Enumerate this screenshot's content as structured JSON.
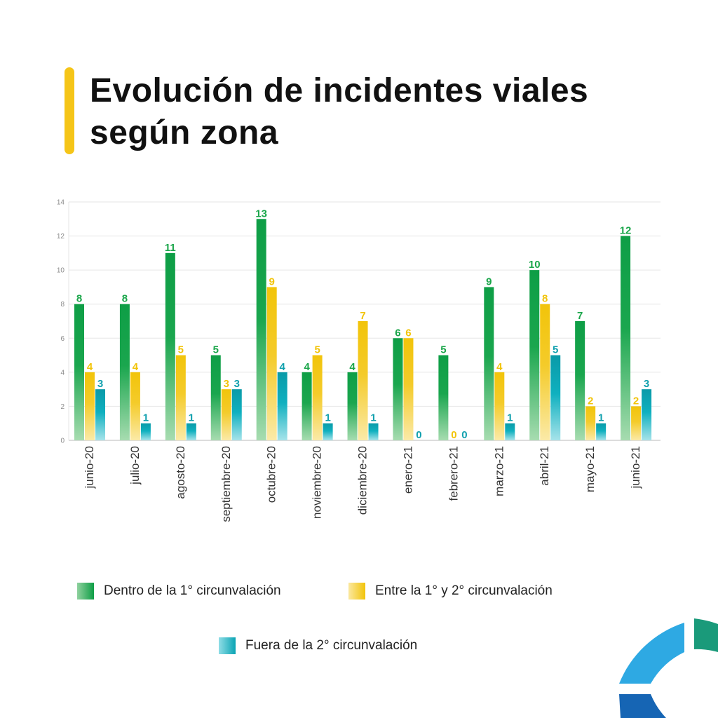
{
  "title": {
    "line1": "Evolución de incidentes viales",
    "line2": "según zona"
  },
  "legend": [
    {
      "label": "Dentro de la 1° circunvalación"
    },
    {
      "label": "Entre la 1° y 2° circunvalación"
    },
    {
      "label": "Fuera de la 2° circunvalación"
    }
  ],
  "colors": {
    "accent": "#f5c518",
    "green": "#0e9e46",
    "yellow": "#f2c40a",
    "teal": "#0aa4b4",
    "label_green": "#1aa64a",
    "label_yellow": "#f2c40a",
    "label_teal": "#11a0ae"
  },
  "chart_data": {
    "type": "bar",
    "categories": [
      "junio-20",
      "julio-20",
      "agosto-20",
      "septiembre-20",
      "octubre-20",
      "noviembre-20",
      "diciembre-20",
      "enero-21",
      "febrero-21",
      "marzo-21",
      "abril-21",
      "mayo-21",
      "junio-21"
    ],
    "series": [
      {
        "name": "Dentro de la 1° circunvalación",
        "values": [
          8,
          8,
          11,
          5,
          13,
          4,
          4,
          6,
          5,
          9,
          10,
          7,
          12
        ]
      },
      {
        "name": "Entre la 1° y 2° circunvalación",
        "values": [
          4,
          4,
          5,
          3,
          9,
          5,
          7,
          6,
          0,
          4,
          8,
          2,
          2
        ]
      },
      {
        "name": "Fuera de la 2° circunvalación",
        "values": [
          3,
          1,
          1,
          3,
          4,
          1,
          1,
          0,
          0,
          1,
          5,
          1,
          3
        ]
      }
    ],
    "ylim": [
      0,
      14
    ],
    "yticks": [
      0,
      2,
      4,
      6,
      8,
      10,
      12,
      14
    ],
    "grid": true,
    "legend_position": "bottom"
  }
}
